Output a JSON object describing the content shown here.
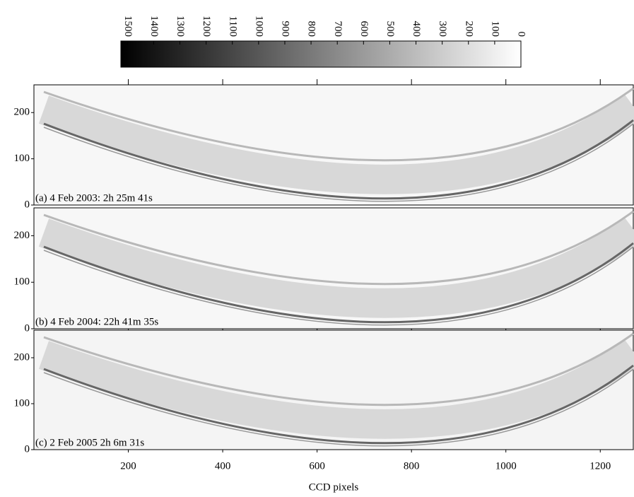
{
  "chart_data": [
    {
      "type": "colorbar",
      "lim": [
        0,
        1525
      ],
      "ticks": [
        0,
        100,
        200,
        300,
        400,
        500,
        600,
        700,
        800,
        900,
        1000,
        1100,
        1200,
        1300,
        1400,
        1500
      ]
    },
    {
      "type": "image",
      "annotation": "(a) 4 Feb 2003: 2h 25m 41s",
      "xlim": [
        0,
        1270
      ],
      "ylim": [
        0,
        260
      ],
      "xticks": [
        200,
        400,
        600,
        800,
        1000,
        1200
      ],
      "yticks": [
        0,
        100,
        200
      ]
    },
    {
      "type": "image",
      "annotation": "(b) 4 Feb 2004: 22h 41m 35s",
      "xlim": [
        0,
        1270
      ],
      "ylim": [
        0,
        260
      ],
      "xticks": [
        200,
        400,
        600,
        800,
        1000,
        1200
      ],
      "yticks": [
        0,
        100,
        200
      ]
    },
    {
      "type": "image",
      "annotation": "(c) 2 Feb 2005 2h 6m 31s",
      "xlim": [
        0,
        1270
      ],
      "ylim": [
        0,
        260
      ],
      "xticks": [
        200,
        400,
        600,
        800,
        1000,
        1200
      ],
      "yticks": [
        0,
        100,
        200
      ],
      "x_label": "CCD pixels"
    }
  ]
}
